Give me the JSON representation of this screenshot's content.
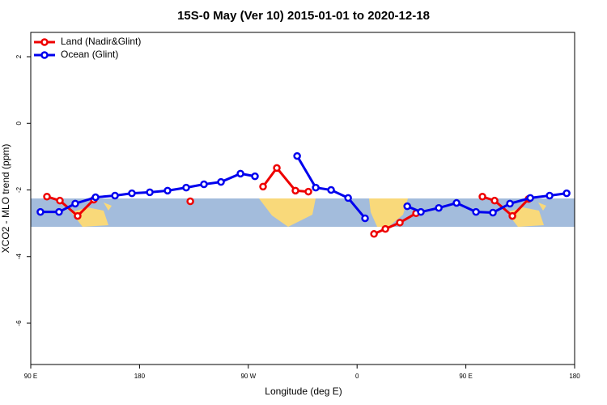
{
  "chart_data": {
    "type": "line",
    "title": "15S-0 May (Ver 10)   2015-01-01 to 2020-12-18",
    "x_label": "Longitude (deg E)",
    "y_label": "XCO2 - MLO trend (ppm)",
    "xlim": [
      90,
      540
    ],
    "ylim": [
      -7.24,
      2.73
    ],
    "xticks": [
      {
        "value": 90,
        "label": "90 E"
      },
      180,
      {
        "value": 270,
        "label": "90 W"
      },
      {
        "value": 360,
        "label": "0"
      },
      {
        "value": 450,
        "label": "90 E"
      },
      {
        "value": 540,
        "label": "180"
      }
    ],
    "yticks": [
      2,
      0,
      -2,
      -4,
      -6
    ],
    "legend": "top-left",
    "series": [
      {
        "name": "Land (Nadir&Glint)",
        "color": "#ee0000",
        "x": [
          103.4,
          114.1,
          128.8,
          142.2,
          null,
          222,
          null,
          282.2,
          293.6,
          309,
          319.7,
          null,
          374,
          383.4,
          395.4,
          408.8,
          null,
          463.7,
          473.8,
          488.5,
          501.9
        ],
        "values": [
          -2.2,
          -2.32,
          -2.78,
          -2.29,
          null,
          -2.34,
          null,
          -1.9,
          -1.34,
          -2.02,
          -2.05,
          null,
          -3.32,
          -3.17,
          -2.98,
          -2.7,
          null,
          -2.2,
          -2.32,
          -2.78,
          -2.27
        ]
      },
      {
        "name": "Ocean (Glint)",
        "color": "#0000ee",
        "x": [
          98,
          113.4,
          126.8,
          143.6,
          159.7,
          173.7,
          188.5,
          203.2,
          218.6,
          233.3,
          247.4,
          263.5,
          275.5,
          null,
          310.4,
          325.8,
          338.5,
          352.6,
          366.6,
          null,
          401.5,
          412.8,
          427.6,
          442.3,
          458.4,
          472.4,
          486.5,
          503.3,
          519.3,
          533.4
        ],
        "values": [
          -2.66,
          -2.66,
          -2.41,
          -2.22,
          -2.17,
          -2.1,
          -2.07,
          -2.02,
          -1.93,
          -1.83,
          -1.76,
          -1.51,
          -1.59,
          null,
          -0.98,
          -1.93,
          -2.0,
          -2.24,
          -2.85,
          null,
          -2.49,
          -2.66,
          -2.54,
          -2.39,
          -2.66,
          -2.68,
          -2.41,
          -2.24,
          -2.17,
          -2.1
        ]
      }
    ]
  }
}
